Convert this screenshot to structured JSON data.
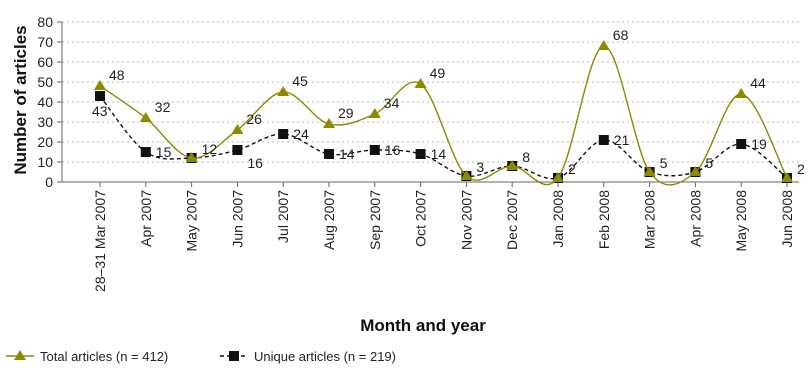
{
  "chart_data": {
    "type": "line",
    "xlabel": "Month and year",
    "ylabel": "Number of articles",
    "ylim": [
      0,
      80
    ],
    "yticks": [
      0,
      10,
      20,
      30,
      40,
      50,
      60,
      70,
      80
    ],
    "grid": "horizontal dotted",
    "legend_position": "bottom-left",
    "categories": [
      "28–31 Mar 2007",
      "Apr 2007",
      "May 2007",
      "Jun 2007",
      "Jul 2007",
      "Aug 2007",
      "Sep 2007",
      "Oct 2007",
      "Nov 2007",
      "Dec 2007",
      "Jan 2008",
      "Feb 2008",
      "Mar 2008",
      "Apr 2008",
      "May 2008",
      "Jun 2008"
    ],
    "series": [
      {
        "name": "Total articles",
        "n_label": "n = 412",
        "values": [
          48,
          32,
          12,
          26,
          45,
          29,
          34,
          49,
          3,
          8,
          2,
          68,
          5,
          5,
          44,
          2
        ],
        "color": "#8b8b00",
        "marker": "triangle",
        "line": "solid"
      },
      {
        "name": "Unique articles",
        "n_label": "n = 219",
        "values": [
          43,
          15,
          12,
          16,
          24,
          14,
          16,
          14,
          3,
          8,
          2,
          21,
          5,
          5,
          19,
          2
        ],
        "color": "#111111",
        "marker": "square",
        "line": "dashed"
      }
    ]
  }
}
